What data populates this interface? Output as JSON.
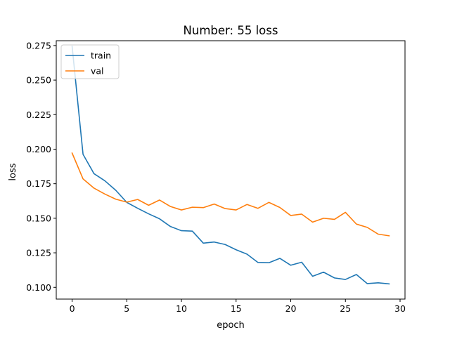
{
  "chart_data": {
    "type": "line",
    "title": "Number: 55 loss",
    "xlabel": "epoch",
    "ylabel": "loss",
    "xlim": [
      -1.45,
      30.45
    ],
    "ylim": [
      0.0915,
      0.2785
    ],
    "xticks": [
      0,
      5,
      10,
      15,
      20,
      25,
      30
    ],
    "yticks": [
      0.1,
      0.125,
      0.15,
      0.175,
      0.2,
      0.225,
      0.25,
      0.275
    ],
    "ytick_labels": [
      "0.100",
      "0.125",
      "0.150",
      "0.175",
      "0.200",
      "0.225",
      "0.250",
      "0.275"
    ],
    "grid": false,
    "legend_position": "upper left",
    "x": [
      0,
      1,
      2,
      3,
      4,
      5,
      6,
      7,
      8,
      9,
      10,
      11,
      12,
      13,
      14,
      15,
      16,
      17,
      18,
      19,
      20,
      21,
      22,
      23,
      24,
      25,
      26,
      27,
      28,
      29
    ],
    "series": [
      {
        "name": "train",
        "color": "#1f77b4",
        "values": [
          0.2745,
          0.1963,
          0.1823,
          0.1771,
          0.1702,
          0.1615,
          0.1572,
          0.1532,
          0.1496,
          0.144,
          0.141,
          0.1407,
          0.132,
          0.1328,
          0.131,
          0.1272,
          0.124,
          0.118,
          0.1178,
          0.121,
          0.116,
          0.1182,
          0.108,
          0.111,
          0.1068,
          0.1057,
          0.1093,
          0.1027,
          0.1033,
          0.1025
        ]
      },
      {
        "name": "val",
        "color": "#ff7f0e",
        "values": [
          0.1972,
          0.1785,
          0.1718,
          0.1675,
          0.1638,
          0.1617,
          0.1636,
          0.1594,
          0.1632,
          0.1585,
          0.156,
          0.158,
          0.1577,
          0.1603,
          0.157,
          0.156,
          0.16,
          0.1572,
          0.1615,
          0.1578,
          0.152,
          0.153,
          0.1472,
          0.15,
          0.1492,
          0.1543,
          0.1458,
          0.1434,
          0.1385,
          0.1373
        ]
      }
    ]
  }
}
